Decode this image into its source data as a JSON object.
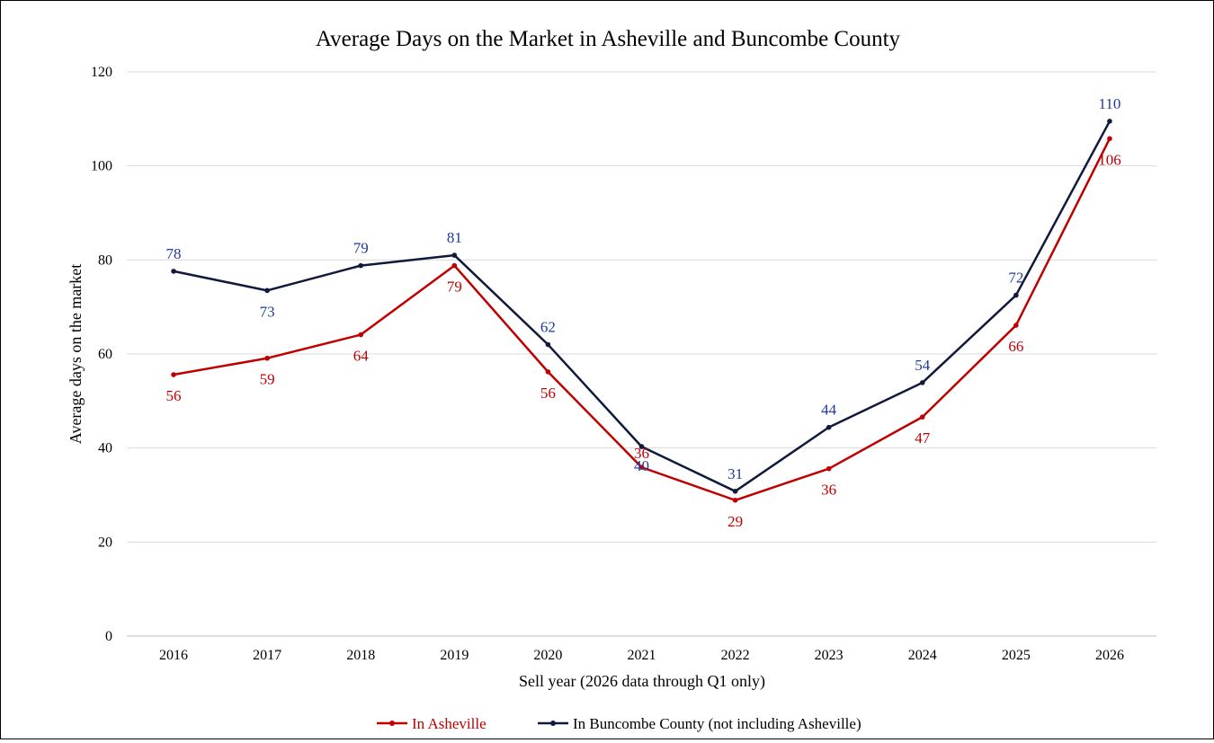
{
  "chart_data": {
    "type": "line",
    "title": "Average Days on the Market in Asheville and Buncombe County",
    "xlabel": "Sell year (2026 data through Q1 only)",
    "ylabel": "Average days on the market",
    "categories": [
      "2016",
      "2017",
      "2018",
      "2019",
      "2020",
      "2021",
      "2022",
      "2023",
      "2024",
      "2025",
      "2026"
    ],
    "ylim": [
      0,
      120
    ],
    "yticks": [
      0,
      20,
      40,
      60,
      80,
      100,
      120
    ],
    "grid": true,
    "legend_position": "bottom",
    "series": [
      {
        "name": "In Asheville",
        "color": "#c00000",
        "label_color": "#c00000",
        "values": [
          55.6,
          59.1,
          64.1,
          78.8,
          56.2,
          35.9,
          28.9,
          35.6,
          46.6,
          66.1,
          105.8
        ],
        "labels": [
          "56",
          "59",
          "64",
          "79",
          "56",
          "36",
          "29",
          "36",
          "47",
          "66",
          "106"
        ]
      },
      {
        "name": "In Buncombe County (not including Asheville)",
        "color": "#0f1a3c",
        "label_color": "#1f3b99",
        "values": [
          77.6,
          73.5,
          78.8,
          81.0,
          62.0,
          40.3,
          30.8,
          44.4,
          53.9,
          72.5,
          109.5
        ],
        "labels": [
          "78",
          "73",
          "79",
          "81",
          "62",
          "40",
          "31",
          "44",
          "54",
          "72",
          "110"
        ]
      }
    ]
  }
}
